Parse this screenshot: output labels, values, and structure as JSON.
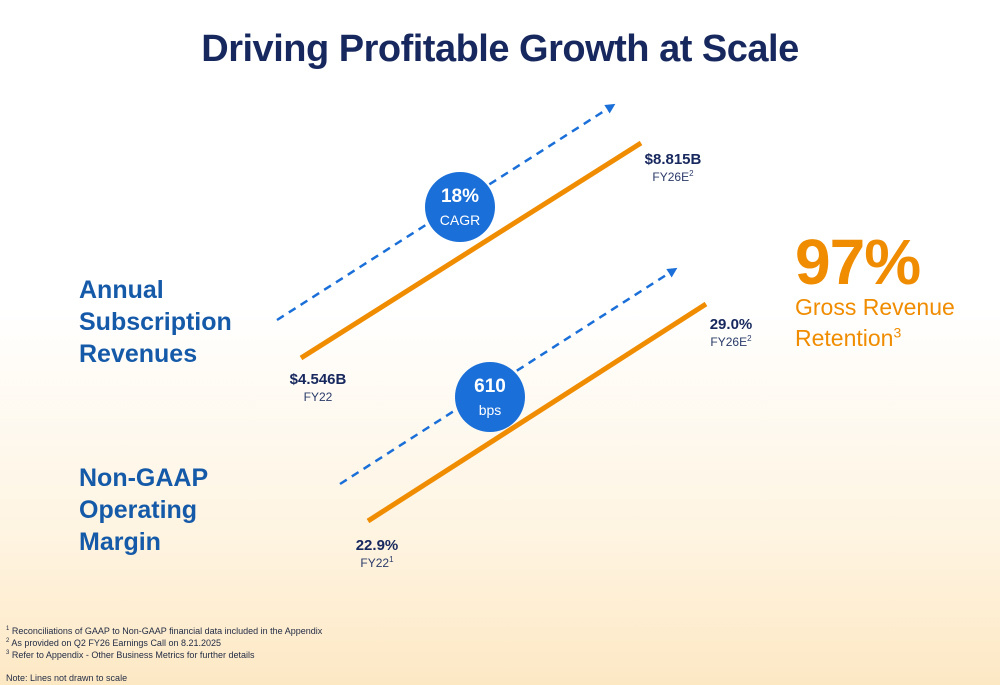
{
  "title": "Driving Profitable Growth at Scale",
  "colors": {
    "title": "#17285e",
    "label": "#155aa8",
    "orange": "#f08c00",
    "blue": "#1a6fd8"
  },
  "rows": [
    {
      "label_lines": [
        "Annual",
        "Subscription",
        "Revenues"
      ],
      "badge": {
        "value": "18%",
        "label": "CAGR"
      },
      "start": {
        "value": "$4.546B",
        "label": "FY22",
        "sup": ""
      },
      "end": {
        "value": "$8.815B",
        "label": "FY26E",
        "sup": "2"
      }
    },
    {
      "label_lines": [
        "Non-GAAP",
        "Operating",
        "Margin"
      ],
      "badge": {
        "value": "610",
        "label": "bps"
      },
      "start": {
        "value": "22.9%",
        "label": "FY22",
        "sup": "1"
      },
      "end": {
        "value": "29.0%",
        "label": "FY26E",
        "sup": "2"
      }
    }
  ],
  "highlight": {
    "value": "97%",
    "line1": "Gross Revenue",
    "line2": "Retention",
    "sup": "3"
  },
  "footnotes": [
    {
      "sup": "1",
      "text": "Reconciliations of GAAP to Non-GAAP financial data included in the Appendix"
    },
    {
      "sup": "2",
      "text": "As provided on Q2 FY26 Earnings Call on 8.21.2025"
    },
    {
      "sup": "3",
      "text": "Refer to Appendix - Other Business Metrics for further details"
    }
  ],
  "note": "Note: Lines not drawn to scale"
}
